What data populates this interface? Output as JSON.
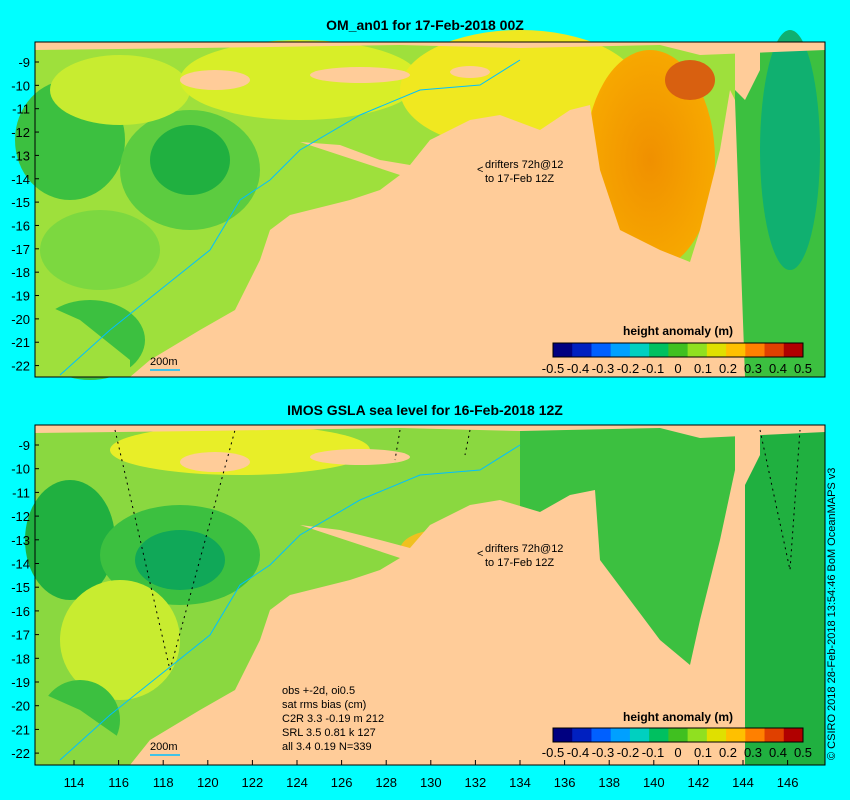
{
  "panels": [
    {
      "id": "top",
      "title": "OM_an01 for 17-Feb-2018 00Z",
      "drifters_line1": "drifters 72h@12",
      "drifters_line2": "to 17-Feb 12Z",
      "isobath_label": "200m",
      "colorbar_label": "height anomaly (m)"
    },
    {
      "id": "bottom",
      "title": "IMOS GSLA sea level  for 16-Feb-2018 12Z",
      "drifters_line1": "drifters 72h@12",
      "drifters_line2": "to 17-Feb 12Z",
      "isobath_label": "200m",
      "colorbar_label": "height anomaly (m)",
      "stats": [
        "obs +-2d, oi0.5",
        "sat rms bias (cm)",
        "C2R   3.3 -0.19 m 212",
        "SRL    3.5  0.81 k 127",
        "all    3.4  0.19  N=339"
      ]
    }
  ],
  "axes": {
    "lon_ticks": [
      "114",
      "116",
      "118",
      "120",
      "122",
      "124",
      "126",
      "128",
      "130",
      "132",
      "134",
      "136",
      "138",
      "140",
      "142",
      "144",
      "146"
    ],
    "lat_ticks": [
      "-9",
      "-10",
      "-11",
      "-12",
      "-13",
      "-14",
      "-15",
      "-16",
      "-17",
      "-18",
      "-19",
      "-20",
      "-21",
      "-22"
    ]
  },
  "colorbar": {
    "tick_labels": [
      "-0.5",
      "-0.4",
      "-0.3",
      "-0.2",
      "-0.1",
      "0",
      "0.1",
      "0.2",
      "0.3",
      "0.4",
      "0.5"
    ],
    "colors": [
      "#000080",
      "#0020c0",
      "#0060ff",
      "#00a0ff",
      "#00d0c0",
      "#00c060",
      "#40c020",
      "#90e020",
      "#e0e000",
      "#ffc000",
      "#ff8000",
      "#e04000",
      "#b00000"
    ]
  },
  "credit": "© CSIRO  2018  28-Feb-2018 13:54:46 BoM OceanMAPS v3",
  "colors": {
    "background": "#00ffff",
    "land": "#ffcc99"
  }
}
